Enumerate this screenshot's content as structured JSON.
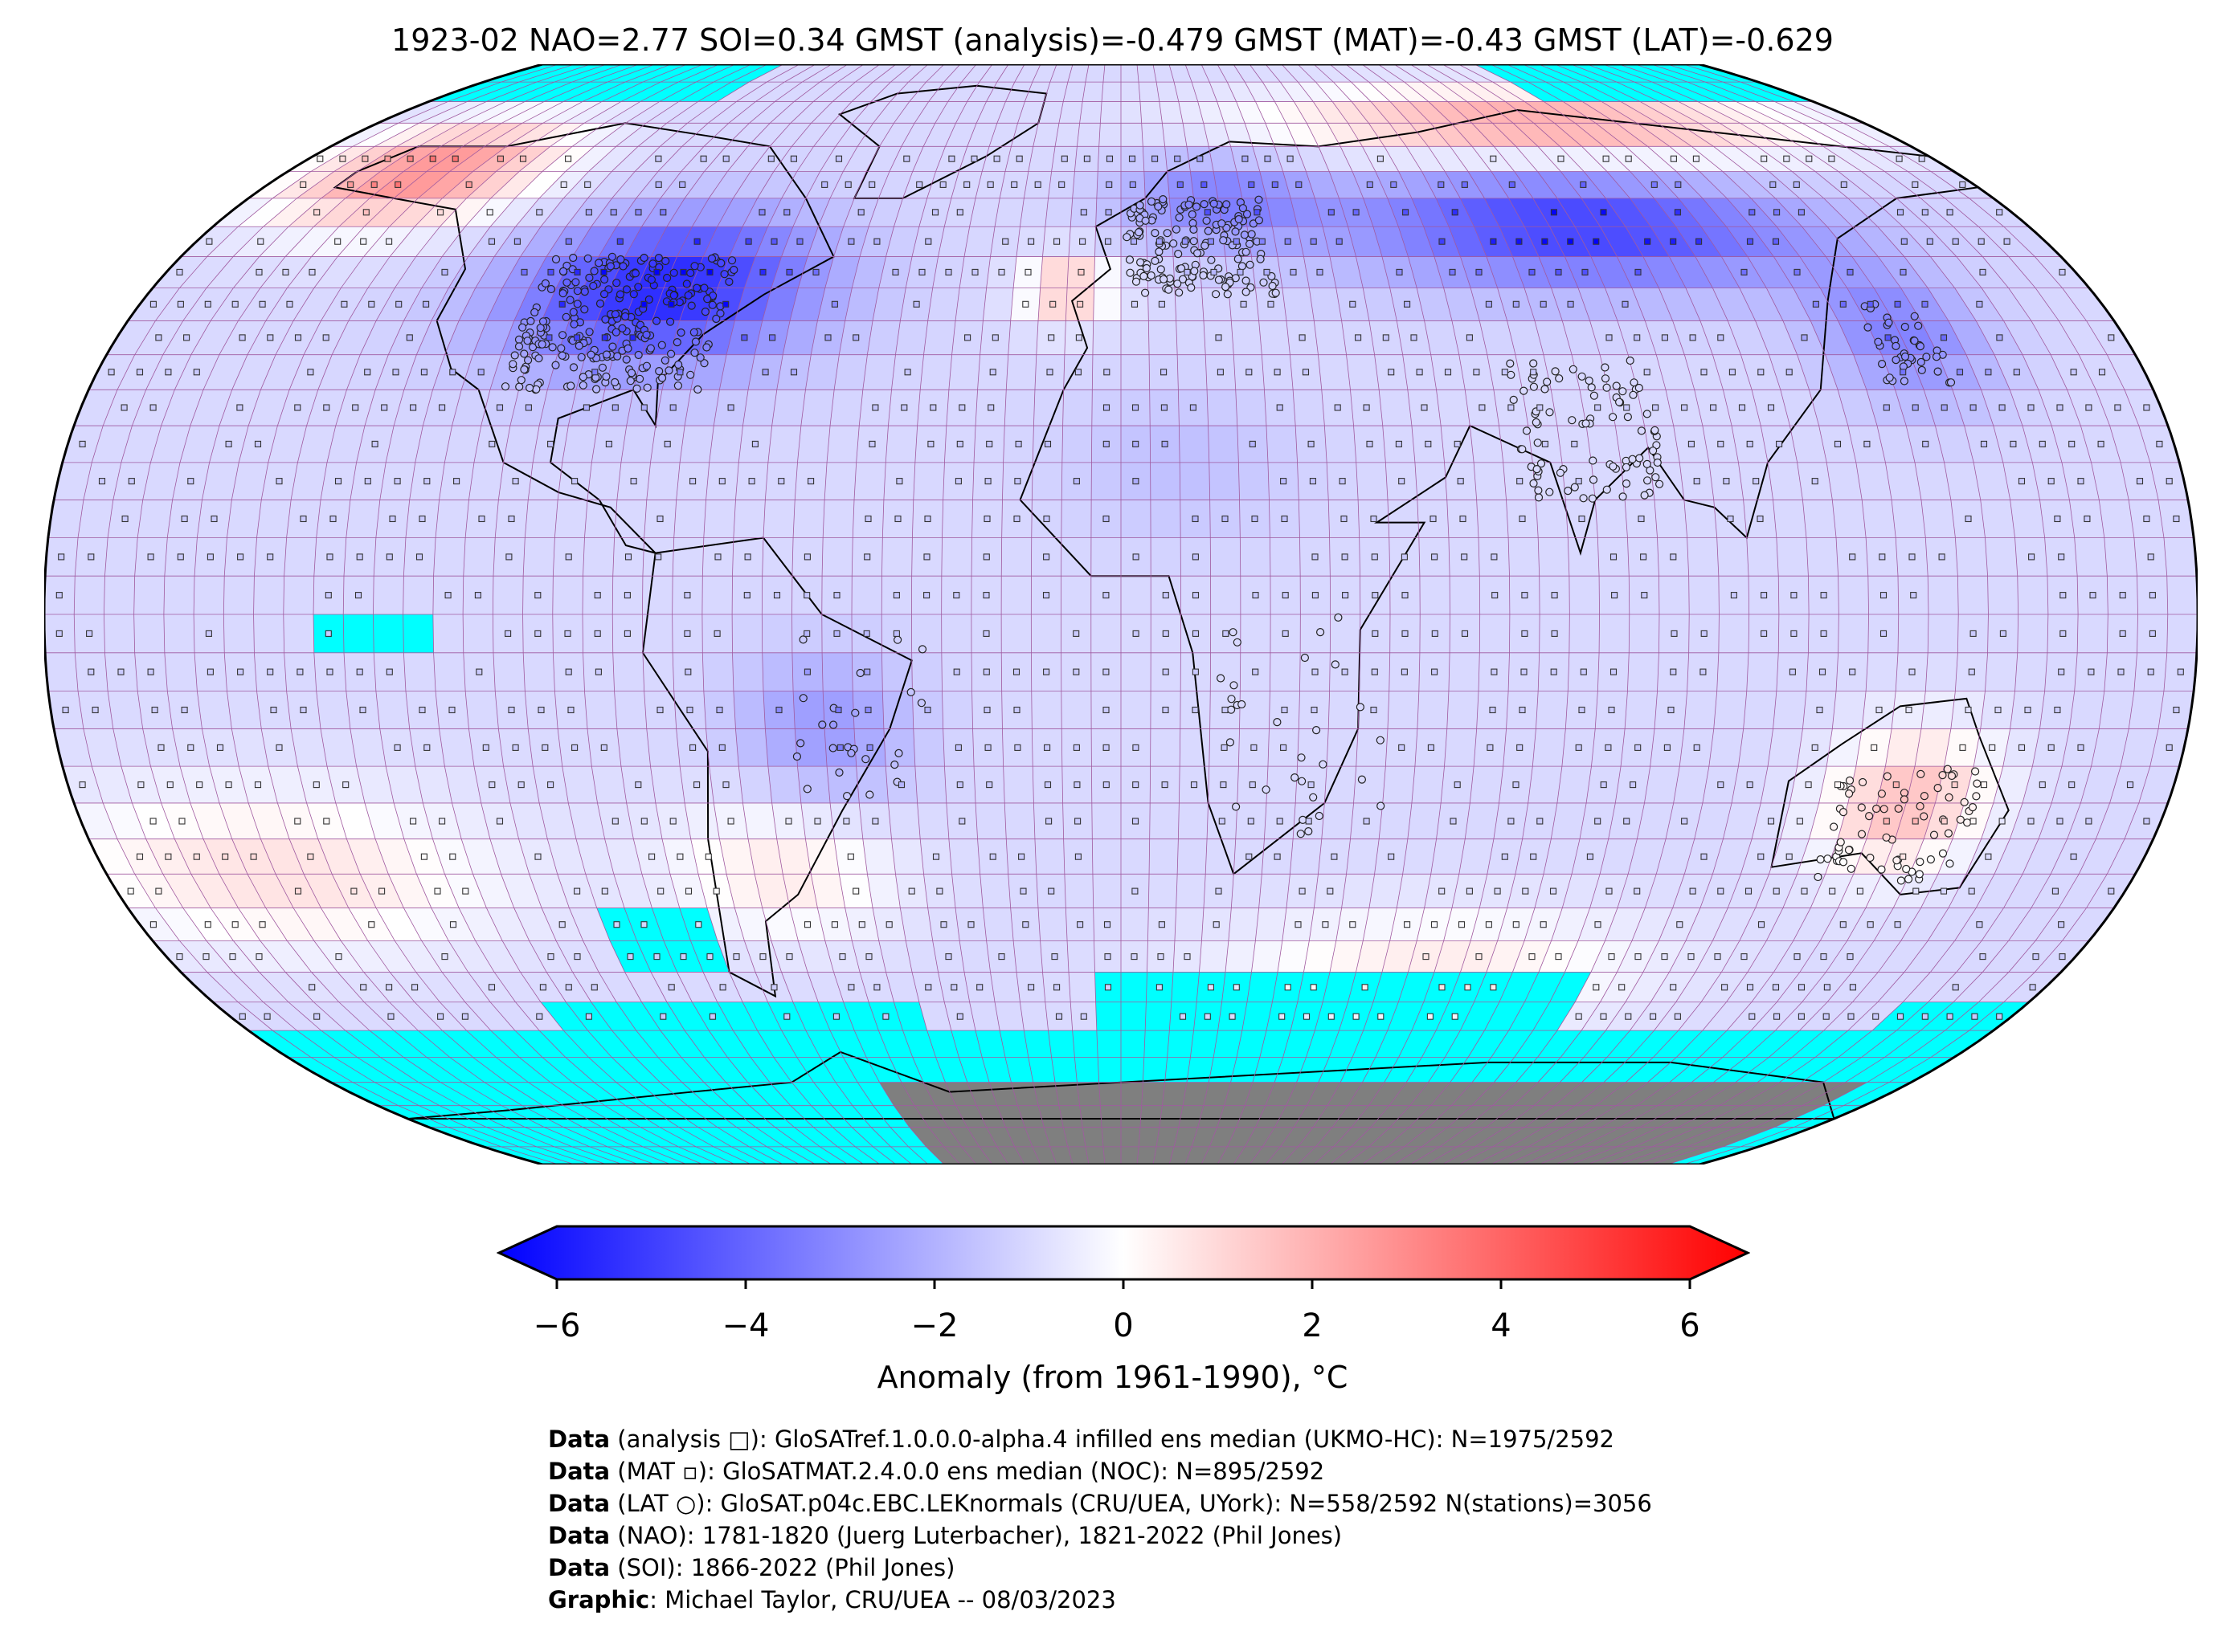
{
  "title": "1923-02 NAO=2.77 SOI=0.34 GMST (analysis)=-0.479 GMST (MAT)=-0.43 GMST (LAT)=-0.629",
  "colorbar": {
    "label": "Anomaly (from 1961-1990), °C",
    "ticks": [
      "−6",
      "−4",
      "−2",
      "0",
      "2",
      "4",
      "6"
    ],
    "min": -6,
    "max": 6,
    "colors": {
      "low": "#0000ff",
      "mid": "#ffffff",
      "high": "#ff0000"
    }
  },
  "map_colors": {
    "no_data": "#00ffff",
    "antarctica": "#7f7f7f",
    "grid": "#a05aa0"
  },
  "notes": [
    {
      "bold": "Data",
      "text": " (analysis □): GloSATref.1.0.0.0-alpha.4 infilled ens median (UKMO-HC): N=1975/2592"
    },
    {
      "bold": "Data",
      "text": " (MAT ▫): GloSATMAT.2.4.0.0 ens median (NOC): N=895/2592"
    },
    {
      "bold": "Data",
      "text": " (LAT ○): GloSAT.p04c.EBC.LEKnormals (CRU/UEA, UYork): N=558/2592 N(stations)=3056"
    },
    {
      "bold": "Data",
      "text": " (NAO): 1781-1820 (Juerg Luterbacher), 1821-2022 (Phil Jones)"
    },
    {
      "bold": "Data",
      "text": " (SOI): 1866-2022 (Phil Jones)"
    },
    {
      "bold": "Graphic",
      "text": ": Michael Taylor, CRU/UEA -- 08/03/2023"
    }
  ]
}
